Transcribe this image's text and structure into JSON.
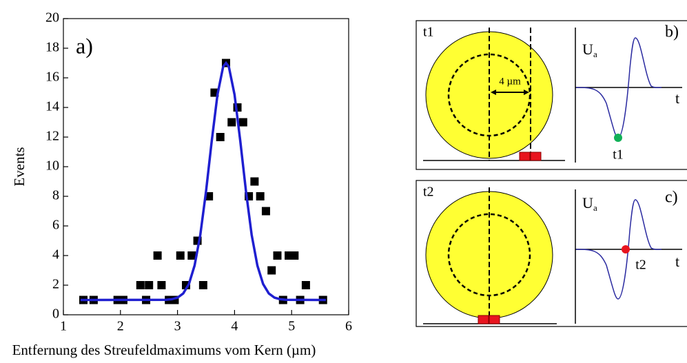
{
  "chart_data": {
    "type": "scatter",
    "annotation": "a)",
    "ylabel": "Events",
    "xlabel": "Entfernung des Streufeldmaximums vom Kern (µm)",
    "xlim": [
      1,
      6
    ],
    "xticks": [
      1,
      2,
      3,
      4,
      5,
      6
    ],
    "ylim": [
      0,
      20
    ],
    "yticks": [
      0,
      2,
      4,
      6,
      8,
      10,
      12,
      14,
      16,
      18,
      20
    ],
    "series": [
      {
        "type": "scatter",
        "color": "#000000",
        "x": [
          1.35,
          1.53,
          1.95,
          2.05,
          2.35,
          2.45,
          2.5,
          2.65,
          2.72,
          2.85,
          2.95,
          3.05,
          3.15,
          3.25,
          3.35,
          3.45,
          3.55,
          3.65,
          3.75,
          3.85,
          3.95,
          4.05,
          4.15,
          4.25,
          4.35,
          4.45,
          4.55,
          4.65,
          4.75,
          4.85,
          4.95,
          5.05,
          5.15,
          5.25,
          5.55
        ],
        "values": [
          1,
          1,
          1,
          1,
          2,
          1,
          2,
          4,
          2,
          1,
          1,
          4,
          2,
          4,
          5,
          2,
          8,
          15,
          12,
          17,
          13,
          14,
          13,
          8,
          9,
          8,
          7,
          3,
          4,
          1,
          4,
          4,
          1,
          2,
          1
        ]
      },
      {
        "type": "line",
        "color": "#1f1fd0",
        "x": [
          1.3,
          2.8,
          2.9,
          3.0,
          3.1,
          3.2,
          3.3,
          3.4,
          3.5,
          3.6,
          3.7,
          3.8,
          3.85,
          3.9,
          4.0,
          4.1,
          4.2,
          4.3,
          4.4,
          4.5,
          4.6,
          4.7,
          4.8,
          4.9,
          5.6
        ],
        "values": [
          1,
          1.01,
          1.05,
          1.16,
          1.44,
          2.08,
          3.33,
          5.4,
          8.33,
          11.74,
          14.86,
          16.75,
          17,
          16.75,
          14.86,
          11.74,
          8.33,
          5.4,
          3.33,
          2.08,
          1.44,
          1.16,
          1.05,
          1.01,
          1
        ]
      }
    ]
  },
  "diagrams": [
    {
      "time_label": "t1",
      "distance": "4 µm",
      "voltage": "U",
      "voltage_sub": "a",
      "time_axis": "t",
      "marker_label": "t1",
      "panel_label": "b)"
    },
    {
      "time_label": "t2",
      "voltage": "U",
      "voltage_sub": "a",
      "time_axis": "t",
      "marker_label": "t2",
      "panel_label": "c)"
    }
  ]
}
